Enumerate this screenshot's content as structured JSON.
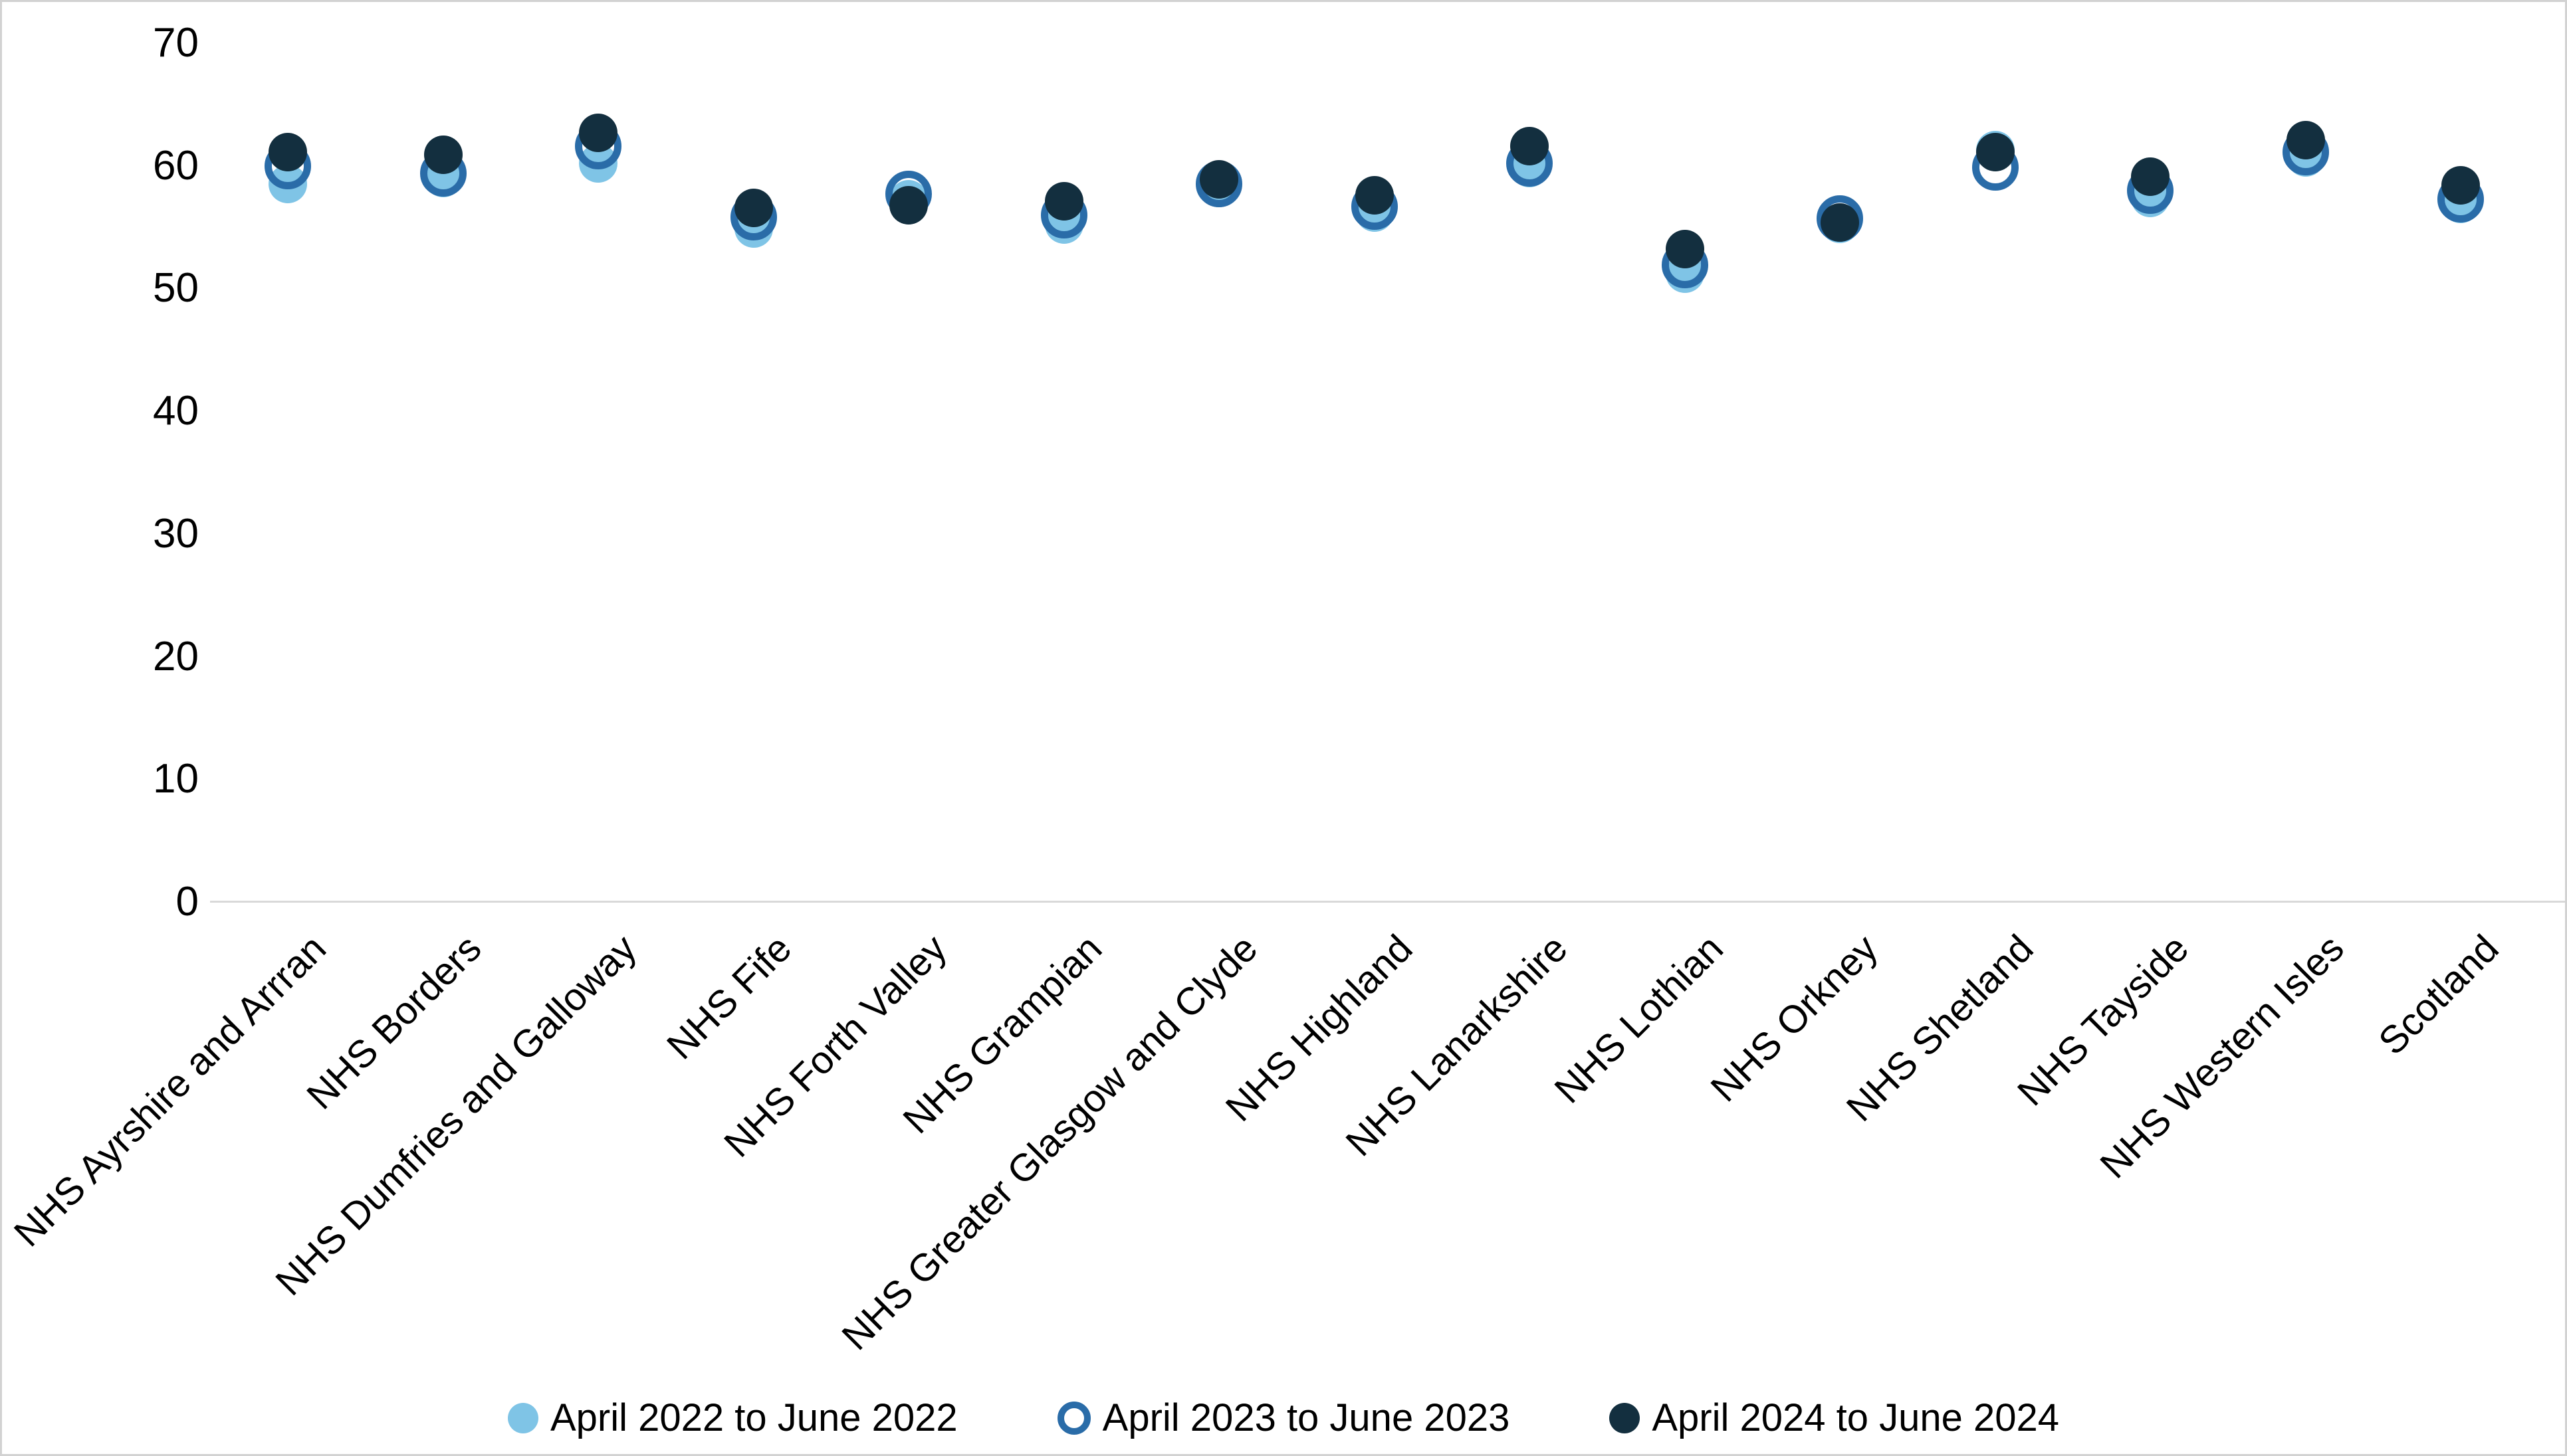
{
  "chart_data": {
    "type": "scatter",
    "title": "",
    "xlabel": "",
    "ylabel": "",
    "ylim": [
      0,
      70
    ],
    "yticks": [
      0,
      10,
      20,
      30,
      40,
      50,
      60,
      70
    ],
    "grid": false,
    "legend_position": "bottom",
    "axis_line_color": "#d9d9d9",
    "categories": [
      "NHS Ayrshire and Arrran",
      "NHS Borders",
      "NHS Dumfries and Galloway",
      "NHS Fife",
      "NHS Forth Valley",
      "NHS Grampian",
      "NHS Greater Glasgow and Clyde",
      "NHS Highland",
      "NHS Lanarkshire",
      "NHS Lothian",
      "NHS Orkney",
      "NHS Shetland",
      "NHS Tayside",
      "NHS Western Isles",
      "Scotland"
    ],
    "series": [
      {
        "name": "April 2022 to June 2022",
        "marker": "filled-circle",
        "color": "#7fc4e6",
        "values": [
          58.5,
          59.0,
          60.2,
          54.9,
          57.3,
          55.2,
          58.2,
          56.2,
          59.8,
          51.2,
          55.3,
          61.3,
          57.4,
          60.7,
          56.9
        ]
      },
      {
        "name": "April 2023 to June 2023",
        "marker": "open-circle",
        "color": "#2a6ca8",
        "values": [
          60.0,
          59.4,
          61.6,
          55.8,
          57.7,
          56.0,
          58.5,
          56.7,
          60.2,
          51.9,
          55.7,
          59.9,
          58.0,
          61.1,
          57.3
        ]
      },
      {
        "name": "April 2024 to June 2024",
        "marker": "filled-circle",
        "color": "#132f3f",
        "values": [
          61.1,
          60.9,
          62.7,
          56.6,
          56.8,
          57.1,
          58.9,
          57.6,
          61.6,
          53.2,
          55.4,
          61.1,
          59.1,
          62.1,
          58.4
        ]
      }
    ]
  }
}
